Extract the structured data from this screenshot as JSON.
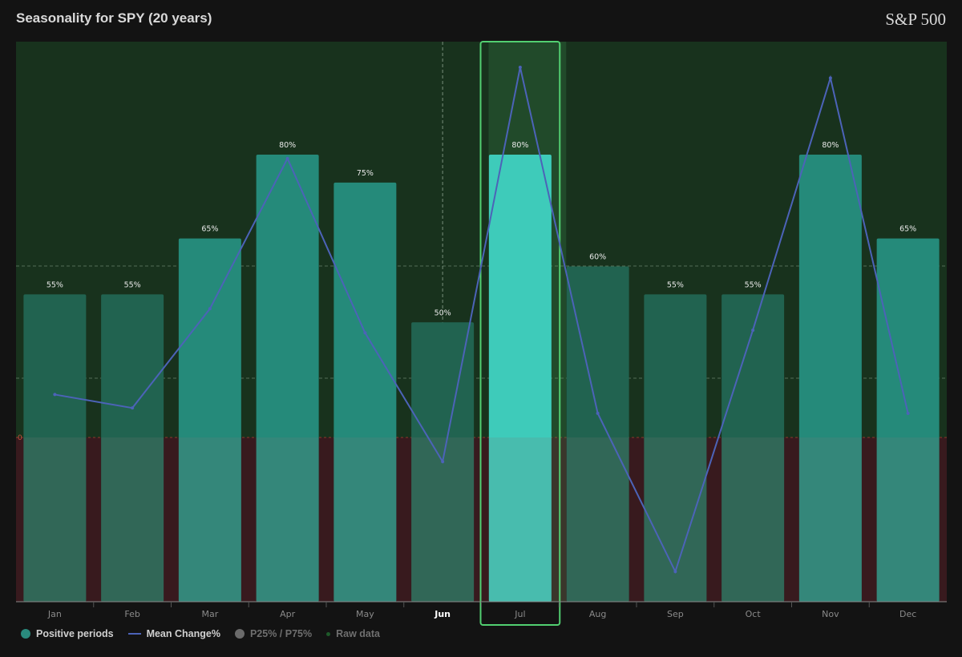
{
  "header": {
    "title": "Seasonality for SPY (20 years)",
    "brand": "S&P 500"
  },
  "chart_data": {
    "type": "bar",
    "categories": [
      "Jan",
      "Feb",
      "Mar",
      "Apr",
      "May",
      "Jun",
      "Jul",
      "Aug",
      "Sep",
      "Oct",
      "Nov",
      "Dec"
    ],
    "series": [
      {
        "name": "Positive periods",
        "values": [
          55,
          55,
          65,
          80,
          75,
          50,
          80,
          60,
          55,
          55,
          80,
          65
        ],
        "labels": [
          "55%",
          "55%",
          "65%",
          "80%",
          "75%",
          "50%",
          "80%",
          "60%",
          "55%",
          "55%",
          "80%",
          "65%"
        ]
      },
      {
        "name": "Mean Change%",
        "values": [
          1.6,
          1.1,
          4.8,
          10.4,
          3.9,
          -0.9,
          13.8,
          0.9,
          -5.0,
          4.0,
          13.4,
          0.9
        ]
      }
    ],
    "highlighted_category": "Jul",
    "current_category": "Jun",
    "zero_label": "0",
    "grid": true,
    "legend_position": "bottom-left"
  },
  "legend": [
    {
      "label": "Positive periods",
      "color": "#2a8a7d",
      "kind": "dot",
      "muted": false
    },
    {
      "label": "Mean Change%",
      "color": "#4c63b8",
      "kind": "line",
      "muted": false
    },
    {
      "label": "P25% / P75%",
      "color": "#6a6a6a",
      "kind": "dot",
      "muted": true
    },
    {
      "label": "Raw data",
      "color": "#1e5a2a",
      "kind": "small",
      "muted": true
    }
  ],
  "colors": {
    "positive_zone": "#18321d",
    "negative_zone": "#381a1e",
    "bar_strong": "#258a7a",
    "bar_weak": "#216350",
    "bar_highlight": "#3ecbba",
    "line": "#4c63b8",
    "highlight_border": "#52cf71"
  }
}
